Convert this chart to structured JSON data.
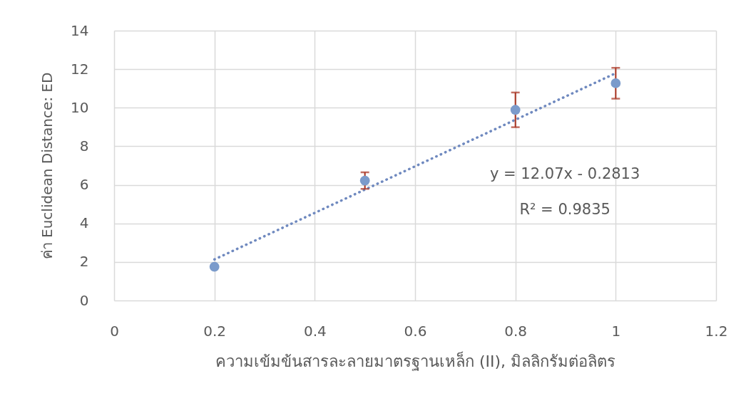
{
  "chart_data": {
    "type": "scatter",
    "xlabel": "ความเข้มข้นสารละลายมาตรฐานเหล็ก (II), มิลลิกรัมต่อลิตร",
    "ylabel": "ค่า Euclidean Distance: ED",
    "xlim": [
      0,
      1.2
    ],
    "xticks": [
      0,
      0.2,
      0.4,
      0.6,
      0.8,
      1,
      1.2
    ],
    "ylim": [
      0,
      14
    ],
    "yticks": [
      0,
      2,
      4,
      6,
      8,
      10,
      12,
      14
    ],
    "grid": true,
    "series": [
      {
        "color": "#7b9bcb",
        "marker": "circle",
        "x": [
          0.2,
          0.5,
          0.8,
          1.0
        ],
        "values": [
          1.75,
          6.22,
          9.89,
          11.27
        ],
        "errors": [
          null,
          0.43,
          0.9,
          0.8
        ]
      },
      {
        "type": "line",
        "color": "#6f89bf",
        "line_style": "dotted",
        "marker": "none",
        "x": [
          0.2,
          1.0
        ],
        "values": [
          2.13,
          11.79
        ]
      }
    ],
    "annotations": [
      "y = 12.07x - 0.2813",
      "R² = 0.9835"
    ]
  }
}
